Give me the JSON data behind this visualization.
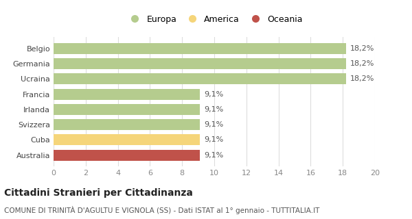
{
  "categories": [
    "Australia",
    "Cuba",
    "Svizzera",
    "Irlanda",
    "Francia",
    "Ucraina",
    "Germania",
    "Belgio"
  ],
  "values": [
    9.1,
    9.1,
    9.1,
    9.1,
    9.1,
    18.2,
    18.2,
    18.2
  ],
  "bar_colors": [
    "#c0524a",
    "#f5d57a",
    "#b5cc8e",
    "#b5cc8e",
    "#b5cc8e",
    "#b5cc8e",
    "#b5cc8e",
    "#b5cc8e"
  ],
  "bar_labels": [
    "9,1%",
    "9,1%",
    "9,1%",
    "9,1%",
    "9,1%",
    "18,2%",
    "18,2%",
    "18,2%"
  ],
  "legend_labels": [
    "Europa",
    "America",
    "Oceania"
  ],
  "legend_colors": [
    "#b5cc8e",
    "#f5d57a",
    "#c0524a"
  ],
  "xlim": [
    0,
    20
  ],
  "xticks": [
    0,
    2,
    4,
    6,
    8,
    10,
    12,
    14,
    16,
    18,
    20
  ],
  "title_main": "Cittadini Stranieri per Cittadinanza",
  "title_sub": "COMUNE DI TRINITÀ D'AGULTU E VIGNOLA (SS) - Dati ISTAT al 1° gennaio - TUTTITALIA.IT",
  "bg_color": "#ffffff",
  "bar_height": 0.72,
  "title_fontsize": 10,
  "subtitle_fontsize": 7.5,
  "label_fontsize": 8,
  "tick_fontsize": 8,
  "legend_fontsize": 9
}
